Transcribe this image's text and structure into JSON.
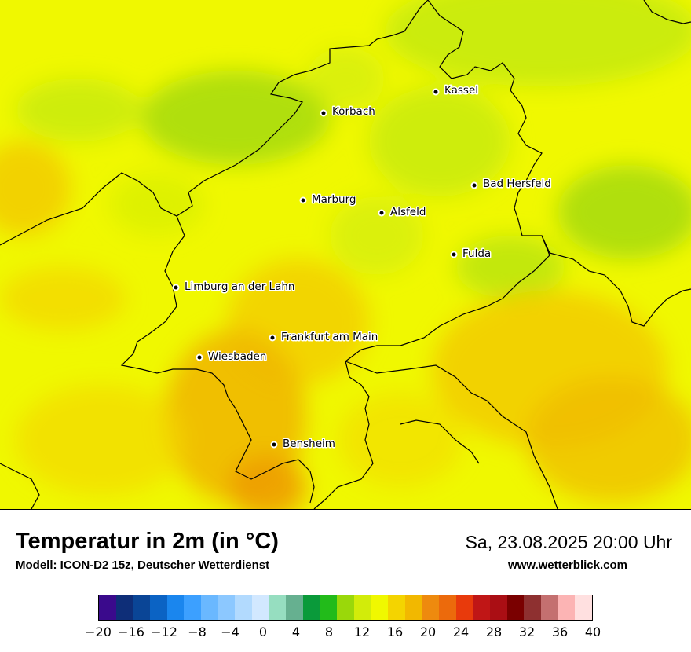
{
  "map": {
    "cities": [
      {
        "name": "Kassel"
      },
      {
        "name": "Korbach"
      },
      {
        "name": "Bad Hersfeld"
      },
      {
        "name": "Marburg"
      },
      {
        "name": "Alsfeld"
      },
      {
        "name": "Fulda"
      },
      {
        "name": "Limburg an der Lahn"
      },
      {
        "name": "Frankfurt am Main"
      },
      {
        "name": "Wiesbaden"
      },
      {
        "name": "Bensheim"
      }
    ]
  },
  "footer": {
    "title": "Temperatur in 2m (in °C)",
    "subtitle": "Modell: ICON-D2 15z, Deutscher Wetterdienst",
    "datetime": "Sa, 23.08.2025 20:00 Uhr",
    "website": "www.wetterblick.com"
  },
  "legend": {
    "colors": [
      "#3a0a8c",
      "#0e2e78",
      "#0a4596",
      "#0b63c4",
      "#1a86ee",
      "#3ca0ff",
      "#6ab8ff",
      "#8cc8ff",
      "#b2dafe",
      "#d2e8ff",
      "#96dec0",
      "#66b090",
      "#0a9a3a",
      "#22bb1a",
      "#9ad80a",
      "#d2ec0a",
      "#f0f800",
      "#f4d400",
      "#f2b800",
      "#ee8a0e",
      "#ec6a0c",
      "#e83a0c",
      "#c01616",
      "#aa0e14",
      "#7a0000",
      "#8e3030",
      "#c47070",
      "#fcb4b4",
      "#ffe0e0"
    ],
    "ticks": [
      "−20",
      "−16",
      "−12",
      "−8",
      "−4",
      "0",
      "4",
      "8",
      "12",
      "16",
      "20",
      "24",
      "28",
      "32",
      "36",
      "40"
    ]
  }
}
